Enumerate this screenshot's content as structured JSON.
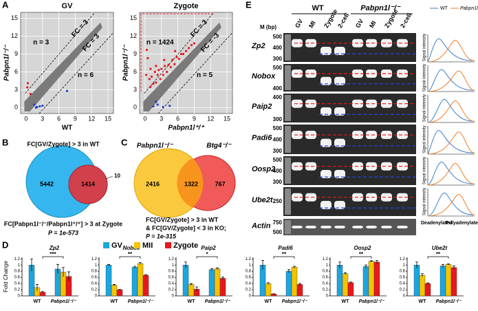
{
  "panel_labels": [
    "A",
    "B",
    "C",
    "D",
    "E"
  ],
  "chart_data": [
    {
      "type": "scatter",
      "title": "GV",
      "x_label": "WT",
      "y_label": "Pabpn1l⁻/⁻",
      "xlim": [
        -1,
        16
      ],
      "ylim": [
        -1,
        16
      ],
      "xticks": [
        0,
        3,
        6,
        9,
        12,
        15
      ],
      "yticks": [
        0,
        3,
        6,
        9,
        12,
        15
      ],
      "grid": true,
      "annotations": [
        "n = 3",
        "n = 6",
        "FC = 3",
        "FC = 3"
      ],
      "series": [
        {
          "color": "#e8171c",
          "x": [
            0.3,
            0.2,
            0.8
          ],
          "values": [
            4.1,
            3.4,
            2.3
          ]
        },
        {
          "color": "#1f3fd1",
          "x": [
            1.5,
            2.0,
            2.5,
            3.0,
            1.8,
            7.5
          ],
          "values": [
            0.5,
            0.1,
            0.2,
            0.3,
            0.0,
            2.8
          ]
        }
      ]
    },
    {
      "type": "scatter",
      "title": "Zygote",
      "x_label": "Pabpn1l⁺/⁺",
      "y_label": "Pabpn1l⁻/⁻",
      "xlim": [
        -1,
        16
      ],
      "ylim": [
        -1,
        16
      ],
      "xticks": [
        0,
        3,
        6,
        9,
        12,
        15
      ],
      "yticks": [
        0,
        3,
        6,
        9,
        12,
        15
      ],
      "grid": true,
      "annotations": [
        "n = 1424",
        "n = 5",
        "FC = 3",
        "FC = -3"
      ],
      "series": [
        {
          "color": "#e8171c",
          "x": [
            0.3,
            0.5,
            0.2,
            0.8,
            1.0,
            1.2,
            1.5,
            1.8,
            2.0,
            2.3,
            2.5,
            2.8,
            3.0,
            3.3,
            3.6,
            4.0,
            4.3,
            4.7,
            5.0,
            5.4,
            5.8,
            6.2,
            6.6,
            7.0,
            7.5,
            8.0,
            8.5,
            9.0,
            1.0,
            2.0,
            3.5,
            5.5
          ],
          "values": [
            9.7,
            8.3,
            5.5,
            4.8,
            3.5,
            5.2,
            4.0,
            6.0,
            4.2,
            5.5,
            6.3,
            4.8,
            6.5,
            5.5,
            7.0,
            6.0,
            7.2,
            6.8,
            8.0,
            7.3,
            8.5,
            8.2,
            9.0,
            9.0,
            9.5,
            10.0,
            10.5,
            10.8,
            6.5,
            7.0,
            8.0,
            9.5
          ]
        },
        {
          "color": "#1f3fd1",
          "x": [
            1.5,
            2.3,
            3.3,
            4.5,
            2.0
          ],
          "values": [
            0.2,
            0.5,
            0.1,
            0.3,
            1.0
          ]
        }
      ]
    },
    {
      "type": "bar",
      "title": "Zp2",
      "y_label": "Fold Change",
      "categories": [
        "WT",
        "Pabpn1l⁻/⁻"
      ],
      "ylim": [
        0,
        1.25
      ],
      "yticks": [
        0,
        0.2,
        0.4,
        0.6,
        0.8,
        1,
        1.2
      ],
      "significance": "***",
      "series": [
        {
          "name": "GV",
          "color": "#1aa7e0",
          "values": [
            1.0,
            0.87
          ],
          "errors": [
            0.2,
            0.15
          ]
        },
        {
          "name": "MII",
          "color": "#f5c400",
          "values": [
            0.27,
            0.77
          ],
          "errors": [
            0.1,
            0.15
          ]
        },
        {
          "name": "Zygote",
          "color": "#e8171c",
          "values": [
            0.12,
            0.63
          ],
          "errors": [
            0.02,
            0.15
          ]
        }
      ]
    },
    {
      "type": "bar",
      "title": "Nobox",
      "categories": [
        "WT",
        "Pabpn1l⁻/⁻"
      ],
      "ylim": [
        0,
        1.25
      ],
      "yticks": [
        0,
        0.2,
        0.4,
        0.6,
        0.8,
        1,
        1.2
      ],
      "significance": "**",
      "series": [
        {
          "color": "#1aa7e0",
          "values": [
            1.0,
            0.93
          ],
          "errors": [
            0.02,
            0.03
          ]
        },
        {
          "color": "#f5c400",
          "values": [
            0.35,
            1.05
          ],
          "errors": [
            0.02,
            0.03
          ]
        },
        {
          "color": "#e8171c",
          "values": [
            0.2,
            0.67
          ],
          "errors": [
            0.01,
            0.02
          ]
        }
      ]
    },
    {
      "type": "bar",
      "title": "Paip2",
      "categories": [
        "WT",
        "Pabpn1l⁻/⁻"
      ],
      "ylim": [
        0,
        1.25
      ],
      "yticks": [
        0,
        0.2,
        0.4,
        0.6,
        0.8,
        1,
        1.2
      ],
      "significance": "*",
      "series": [
        {
          "color": "#1aa7e0",
          "values": [
            1.0,
            0.85
          ],
          "errors": [
            0.1,
            0.03
          ]
        },
        {
          "color": "#f5c400",
          "values": [
            0.37,
            0.88
          ],
          "errors": [
            0.03,
            0.03
          ]
        },
        {
          "color": "#e8171c",
          "values": [
            0.22,
            0.57
          ],
          "errors": [
            0.07,
            0.04
          ]
        }
      ]
    },
    {
      "type": "bar",
      "title": "Padi6",
      "categories": [
        "WT",
        "Pabpn1l⁻/⁻"
      ],
      "ylim": [
        0,
        1.25
      ],
      "yticks": [
        0,
        0.2,
        0.4,
        0.6,
        0.8,
        1,
        1.2
      ],
      "significance": "**",
      "series": [
        {
          "color": "#1aa7e0",
          "values": [
            1.0,
            0.8
          ],
          "errors": [
            0.15,
            0.05
          ]
        },
        {
          "color": "#f5c400",
          "values": [
            0.4,
            0.93
          ],
          "errors": [
            0.03,
            0.03
          ]
        },
        {
          "color": "#e8171c",
          "values": [
            0.06,
            0.37
          ],
          "errors": [
            0.01,
            0.03
          ]
        }
      ]
    },
    {
      "type": "bar",
      "title": "Oosp2",
      "categories": [
        "WT",
        "Pabpn1l⁻/⁻"
      ],
      "ylim": [
        0,
        1.25
      ],
      "yticks": [
        0,
        0.2,
        0.4,
        0.6,
        0.8,
        1,
        1.2
      ],
      "significance": "**",
      "series": [
        {
          "color": "#1aa7e0",
          "values": [
            1.0,
            0.95
          ],
          "errors": [
            0.1,
            0.05
          ]
        },
        {
          "color": "#f5c400",
          "values": [
            0.72,
            1.12
          ],
          "errors": [
            0.03,
            0.02
          ]
        },
        {
          "color": "#e8171c",
          "values": [
            0.43,
            1.1
          ],
          "errors": [
            0.02,
            0.05
          ]
        }
      ]
    },
    {
      "type": "bar",
      "title": "Ube2t",
      "categories": [
        "WT",
        "Pabpn1l⁻/⁻"
      ],
      "ylim": [
        0,
        1.25
      ],
      "yticks": [
        0,
        0.2,
        0.4,
        0.6,
        0.8,
        1,
        1.2
      ],
      "significance": "**",
      "series": [
        {
          "color": "#1aa7e0",
          "values": [
            1.0,
            0.97
          ],
          "errors": [
            0.1,
            0.05
          ]
        },
        {
          "color": "#f5c400",
          "values": [
            0.67,
            1.02
          ],
          "errors": [
            0.05,
            0.02
          ]
        },
        {
          "color": "#e8171c",
          "values": [
            0.4,
            0.92
          ],
          "errors": [
            0.02,
            0.05
          ]
        }
      ]
    }
  ],
  "venn_b": {
    "top_label": "FC[GV/Zygote] > 3 in WT",
    "left": "5442",
    "middle": "1414",
    "right": "10",
    "bottom_label": "FC[Pabpn1l⁻/⁻/Pabpn1l⁺/⁺] > 3 at Zygote",
    "p_value": "P = 1e-573"
  },
  "venn_c": {
    "left_label": "Pabpn1l⁻/⁻",
    "right_label": "Btg4⁻/⁻",
    "left": "2416",
    "middle": "1322",
    "right": "767",
    "caption": [
      "FC[GV/Zygote] > 3 in WT",
      "& FC[GV/Zygote] < 3 in KO;",
      "P = 1e-315"
    ]
  },
  "gel": {
    "groups": [
      "WT",
      "Pabpn1l⁻/⁻"
    ],
    "marker": "M (bp)",
    "lanes": [
      "GV",
      "MI",
      "Zygote",
      "2-cell",
      "GV",
      "MI",
      "Zygote",
      "2-cell"
    ],
    "rows": [
      {
        "gene": "Zp2",
        "ladder": [
          "500",
          "400",
          "300"
        ]
      },
      {
        "gene": "Nobox",
        "ladder": [
          "500",
          "400"
        ]
      },
      {
        "gene": "Paip2",
        "ladder": [
          "400",
          "300"
        ]
      },
      {
        "gene": "Padi6",
        "ladder": [
          "500",
          "400",
          "300"
        ]
      },
      {
        "gene": "Oosp2",
        "ladder": [
          "500",
          "400",
          "300"
        ]
      },
      {
        "gene": "Ube2t",
        "ladder": [
          "250"
        ]
      },
      {
        "gene": "Actin",
        "ladder": [
          "750",
          "500"
        ]
      }
    ],
    "legend": [
      "WT",
      "Pabpn1l⁻/⁻"
    ],
    "y_label": "Signal intensity",
    "deadenylated": "Deadenylated",
    "polyadenylated": "Polyadenylated"
  }
}
